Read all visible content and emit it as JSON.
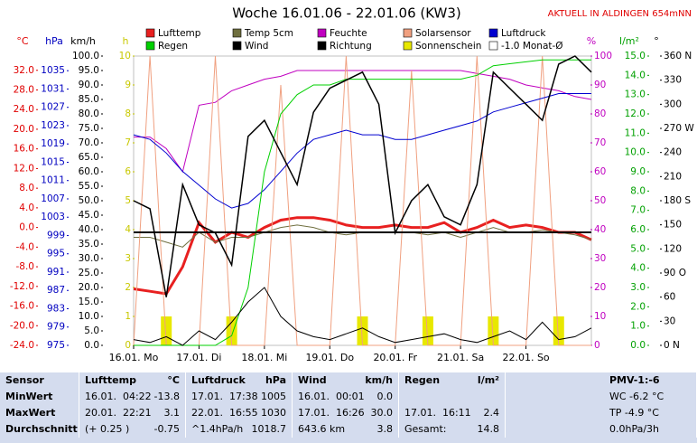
{
  "chart_data": {
    "type": "line",
    "title": "Woche 16.01.06 - 22.01.06 (KW3)",
    "annotation": "AKTUELL IN ALDINGEN 654mNN",
    "xlim": [
      0,
      7
    ],
    "xticks": [
      {
        "value": 0,
        "label": "16.01. Mo"
      },
      {
        "value": 1,
        "label": "17.01. Di"
      },
      {
        "value": 2,
        "label": "18.01. Mi"
      },
      {
        "value": 3,
        "label": "19.01. Do"
      },
      {
        "value": 4,
        "label": "20.01. Fr"
      },
      {
        "value": 5,
        "label": "21.01. Sa"
      },
      {
        "value": 6,
        "label": "22.01. So"
      }
    ],
    "x": [
      0,
      0.25,
      0.5,
      0.75,
      1,
      1.25,
      1.5,
      1.75,
      2,
      2.25,
      2.5,
      2.75,
      3,
      3.25,
      3.5,
      3.75,
      4,
      4.25,
      4.5,
      4.75,
      5,
      5.25,
      5.5,
      5.75,
      6,
      6.25,
      6.5,
      6.75,
      7
    ],
    "axes": [
      {
        "label": "°C",
        "color": "#e00000",
        "ylim": [
          -24,
          34.9
        ],
        "yticks": [
          {
            "value": 32,
            "label": "32.0"
          },
          {
            "value": 28,
            "label": "28.0"
          },
          {
            "value": 24,
            "label": "24.0"
          },
          {
            "value": 20,
            "label": "20.0"
          },
          {
            "value": 16,
            "label": "16.0"
          },
          {
            "value": 12,
            "label": "12.0"
          },
          {
            "value": 8,
            "label": "8.0"
          },
          {
            "value": 4,
            "label": "4.0"
          },
          {
            "value": 0,
            "label": "0.0"
          },
          {
            "value": -4,
            "label": "-4.0"
          },
          {
            "value": -8,
            "label": "-8.0"
          },
          {
            "value": -12,
            "label": "-12.0"
          },
          {
            "value": -16,
            "label": "-16.0"
          },
          {
            "value": -20,
            "label": "-20.0"
          },
          {
            "value": -24,
            "label": "-24.0"
          }
        ]
      },
      {
        "label": "hPa",
        "color": "#0000c0",
        "ylim": [
          975,
          1038.2
        ],
        "yticks": [
          1035,
          1031,
          1027,
          1023,
          1019,
          1015,
          1011,
          1007,
          1003,
          999,
          995,
          991,
          987,
          983,
          979,
          975
        ]
      },
      {
        "label": "km/h",
        "color": "#000000",
        "ylim": [
          0,
          100
        ],
        "yticks": [
          {
            "value": 100,
            "label": "100.0"
          },
          {
            "value": 95,
            "label": "95.0"
          },
          {
            "value": 90,
            "label": "90.0"
          },
          {
            "value": 85,
            "label": "85.0"
          },
          {
            "value": 80,
            "label": "80.0"
          },
          {
            "value": 75,
            "label": "75.0"
          },
          {
            "value": 70,
            "label": "70.0"
          },
          {
            "value": 65,
            "label": "65.0"
          },
          {
            "value": 60,
            "label": "60.0"
          },
          {
            "value": 55,
            "label": "55.0"
          },
          {
            "value": 50,
            "label": "50.0"
          },
          {
            "value": 45,
            "label": "45.0"
          },
          {
            "value": 40,
            "label": "40.0"
          },
          {
            "value": 35,
            "label": "35.0"
          },
          {
            "value": 30,
            "label": "30.0"
          },
          {
            "value": 25,
            "label": "25.0"
          },
          {
            "value": 20,
            "label": "20.0"
          },
          {
            "value": 15,
            "label": "15.0"
          },
          {
            "value": 10,
            "label": "10.0"
          },
          {
            "value": 5,
            "label": "5.0"
          },
          {
            "value": 0,
            "label": "0.0"
          }
        ]
      },
      {
        "label": "h",
        "color": "#c8c800",
        "ylim": [
          0,
          10
        ],
        "yticks": [
          10,
          9,
          8,
          7,
          6,
          5,
          4,
          3,
          2,
          1,
          0
        ]
      },
      {
        "label": "%",
        "color": "#c000c0",
        "ylim": [
          0,
          100
        ],
        "yticks": [
          100,
          90,
          80,
          70,
          60,
          50,
          40,
          30,
          20,
          10,
          0
        ]
      },
      {
        "label": "l/m²",
        "color": "#00a000",
        "ylim": [
          0,
          15
        ],
        "yticks": [
          {
            "value": 15,
            "label": "15.0"
          },
          {
            "value": 14,
            "label": "14.0"
          },
          {
            "value": 13,
            "label": "13.0"
          },
          {
            "value": 12,
            "label": "12.0"
          },
          {
            "value": 11,
            "label": "11.0"
          },
          {
            "value": 10,
            "label": "10.0"
          },
          {
            "value": 9,
            "label": "9.0"
          },
          {
            "value": 8,
            "label": "8.0"
          },
          {
            "value": 7,
            "label": "7.0"
          },
          {
            "value": 6,
            "label": "6.0"
          },
          {
            "value": 5,
            "label": "5.0"
          },
          {
            "value": 4,
            "label": "4.0"
          },
          {
            "value": 3,
            "label": "3.0"
          },
          {
            "value": 2,
            "label": "2.0"
          },
          {
            "value": 1,
            "label": "1.0"
          },
          {
            "value": 0,
            "label": "0.0"
          }
        ]
      },
      {
        "label": "°",
        "color": "#000000",
        "ylim": [
          0,
          360
        ],
        "yticks": [
          {
            "value": 360,
            "label": "360 N"
          },
          330,
          300,
          {
            "value": 270,
            "label": "270 W"
          },
          240,
          210,
          {
            "value": 180,
            "label": "180 S"
          },
          150,
          120,
          {
            "value": 90,
            "label": "90 O"
          },
          60,
          30,
          {
            "value": 0,
            "label": "0 N"
          }
        ]
      }
    ],
    "series": [
      {
        "name": "Lufttemp",
        "color": "#e82020",
        "axis": 0,
        "width": 3,
        "values": [
          -12.5,
          -13,
          -13.5,
          -8,
          1,
          -3,
          -1,
          -2,
          0,
          1.5,
          2,
          2,
          1.5,
          0.5,
          0,
          0,
          0.5,
          0,
          0,
          1,
          -1,
          0,
          1.5,
          0,
          0.5,
          0,
          -1,
          -1,
          -2.5
        ]
      },
      {
        "name": "Temp 5cm",
        "color": "#707040",
        "axis": 0,
        "width": 1,
        "values": [
          -2,
          -2,
          -3,
          -4,
          -1,
          -3,
          -2,
          -2,
          -1,
          0,
          0.5,
          0,
          -1,
          -1.5,
          -1,
          -1,
          -1,
          -1,
          -1.5,
          -1,
          -2,
          -1,
          0,
          -1,
          -1,
          -0.5,
          -1,
          -1.5,
          -2.5
        ]
      },
      {
        "name": "Feuchte",
        "color": "#c000c0",
        "axis": 4,
        "width": 1,
        "values": [
          72,
          72,
          68,
          60,
          83,
          84,
          88,
          90,
          92,
          93,
          95,
          95,
          95,
          95,
          95,
          95,
          95,
          95,
          95,
          95,
          95,
          94,
          93,
          92,
          90,
          89,
          88,
          86,
          85
        ]
      },
      {
        "name": "Solarsensor",
        "color": "#f0a080",
        "axis": 4,
        "width": 1,
        "values": [
          0,
          100,
          0,
          0,
          0,
          100,
          0,
          0,
          0,
          90,
          0,
          0,
          0,
          100,
          0,
          0,
          0,
          95,
          0,
          0,
          0,
          100,
          0,
          0,
          0,
          100,
          0,
          0,
          0
        ]
      },
      {
        "name": "Luftdruck",
        "color": "#0000d0",
        "axis": 1,
        "width": 1,
        "values": [
          1021,
          1020,
          1017,
          1013,
          1010,
          1007,
          1005,
          1006,
          1009,
          1013,
          1017,
          1020,
          1021,
          1022,
          1021,
          1021,
          1020,
          1020,
          1021,
          1022,
          1023,
          1024,
          1026,
          1027,
          1028,
          1029,
          1030,
          1030,
          1030
        ]
      },
      {
        "name": "Regen",
        "color": "#00d000",
        "axis": 5,
        "width": 1,
        "values": [
          0,
          0,
          0,
          0,
          0,
          0,
          0.5,
          3,
          9,
          12,
          13,
          13.5,
          13.5,
          13.8,
          13.8,
          13.8,
          13.8,
          13.8,
          13.8,
          13.8,
          13.8,
          14,
          14.5,
          14.6,
          14.7,
          14.8,
          14.8,
          14.8,
          14.8
        ]
      },
      {
        "name": "Wind",
        "color": "#000000",
        "axis": 2,
        "width": 1,
        "values": [
          2,
          1,
          3,
          0,
          5,
          2,
          8,
          15,
          20,
          10,
          5,
          3,
          2,
          4,
          6,
          3,
          1,
          2,
          3,
          4,
          2,
          1,
          3,
          5,
          2,
          8,
          2,
          3,
          6
        ]
      },
      {
        "name": "Richtung",
        "color": "#000000",
        "axis": 6,
        "width": 1.5,
        "values": [
          180,
          170,
          60,
          200,
          150,
          140,
          100,
          260,
          280,
          240,
          200,
          290,
          320,
          330,
          340,
          300,
          140,
          180,
          200,
          160,
          150,
          200,
          340,
          320,
          300,
          280,
          350,
          360,
          340
        ]
      },
      {
        "name": "Sonnenschein",
        "color": "#e8e800",
        "axis": 3,
        "type": "bar",
        "x": [
          0.5,
          1.5,
          3.5,
          4.5,
          5.5,
          6.5
        ],
        "values": [
          1,
          1,
          1,
          1,
          1,
          1
        ]
      }
    ],
    "reference": {
      "name": "-1.0 Monat-Ø",
      "color": "#000000",
      "axis": 0,
      "value": -1
    }
  },
  "table": {
    "header": [
      "Sensor",
      [
        "Lufttemp",
        "°C"
      ],
      [
        "Luftdruck",
        "hPa"
      ],
      [
        "Wind",
        "km/h"
      ],
      [
        "Regen",
        "l/m²"
      ],
      "PMV-1:-6"
    ],
    "rows": [
      [
        "MinWert",
        [
          "16.01.  04:22",
          "-13.8"
        ],
        [
          "17.01.  17:38",
          "1005"
        ],
        [
          "16.01.  00:01",
          "0.0"
        ],
        [
          "",
          ""
        ],
        "WC -6.2 °C"
      ],
      [
        "MaxWert",
        [
          "20.01.  22:21",
          "3.1"
        ],
        [
          "22.01.  16:55",
          "1030"
        ],
        [
          "17.01.  16:26",
          "30.0"
        ],
        [
          "17.01.  16:11",
          "2.4"
        ],
        "TP -4.9 °C"
      ],
      [
        "Durchschnitt",
        [
          "(+ 0.25 )",
          "-0.75"
        ],
        [
          "^1.4hPa/h",
          "1018.7"
        ],
        [
          "643.6 km",
          "3.8"
        ],
        [
          "Gesamt:",
          "14.8"
        ],
        "0.0hPa/3h"
      ]
    ]
  }
}
